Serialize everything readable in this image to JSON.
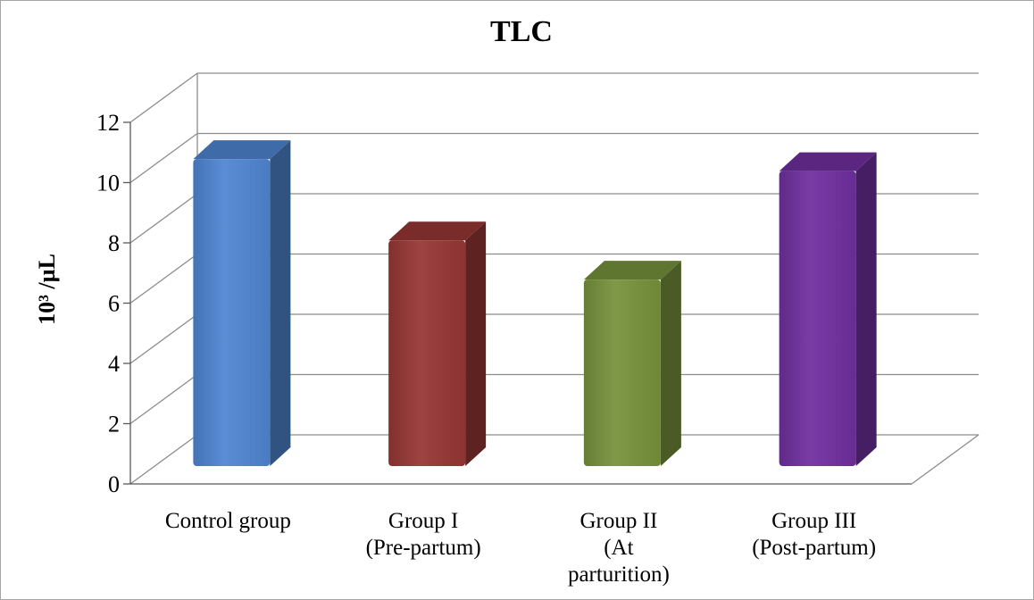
{
  "chart_data": {
    "type": "bar",
    "title": "TLC",
    "ylabel": "10³ /µL",
    "xlabel": "",
    "ylim": [
      0,
      12
    ],
    "yticks": [
      0,
      2,
      4,
      6,
      8,
      10,
      12
    ],
    "grid": true,
    "categories": [
      [
        "Control group"
      ],
      [
        "Group I",
        "(Pre-partum)"
      ],
      [
        "Group II",
        "(At",
        "parturition)"
      ],
      [
        "Group III",
        "(Post-partum)"
      ]
    ],
    "values": [
      10.9,
      8.2,
      6.9,
      10.5
    ],
    "colors": [
      "#4f86d2",
      "#973735",
      "#77933c",
      "#7030a0"
    ]
  }
}
